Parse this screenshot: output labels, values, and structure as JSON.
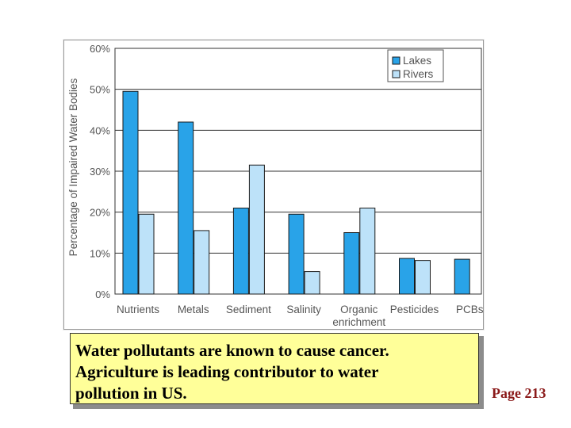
{
  "chart_data": {
    "type": "bar",
    "title": "",
    "xlabel": "",
    "ylabel": "Percentage of Impaired Water Bodies",
    "ylim": [
      0,
      60
    ],
    "y_ticks": [
      "0%",
      "10%",
      "20%",
      "30%",
      "40%",
      "50%",
      "60%"
    ],
    "y_tick_values": [
      0,
      10,
      20,
      30,
      40,
      50,
      60
    ],
    "grid": true,
    "legend_position": "top-right",
    "categories": [
      "Nutrients",
      "Metals",
      "Sediment",
      "Salinity",
      "Organic enrichment",
      "Pesticides",
      "PCBs"
    ],
    "category_labels": [
      [
        "Nutrients"
      ],
      [
        "Metals"
      ],
      [
        "Sediment"
      ],
      [
        "Salinity"
      ],
      [
        "Organic",
        "enrichment"
      ],
      [
        "Pesticides"
      ],
      [
        "PCBs"
      ]
    ],
    "series": [
      {
        "name": "Lakes",
        "color": "#29a3e8",
        "values": [
          49.5,
          42,
          21,
          19.5,
          15,
          8.7,
          8.5
        ]
      },
      {
        "name": "Rivers",
        "color": "#bde2f9",
        "values": [
          19.5,
          15.5,
          31.5,
          5.5,
          21,
          8.2,
          null
        ]
      }
    ]
  },
  "caption": {
    "lines": [
      "Water pollutants are known to cause cancer.",
      "Agriculture is leading contributor to water",
      "pollution in US."
    ]
  },
  "page_ref": "Page 213"
}
